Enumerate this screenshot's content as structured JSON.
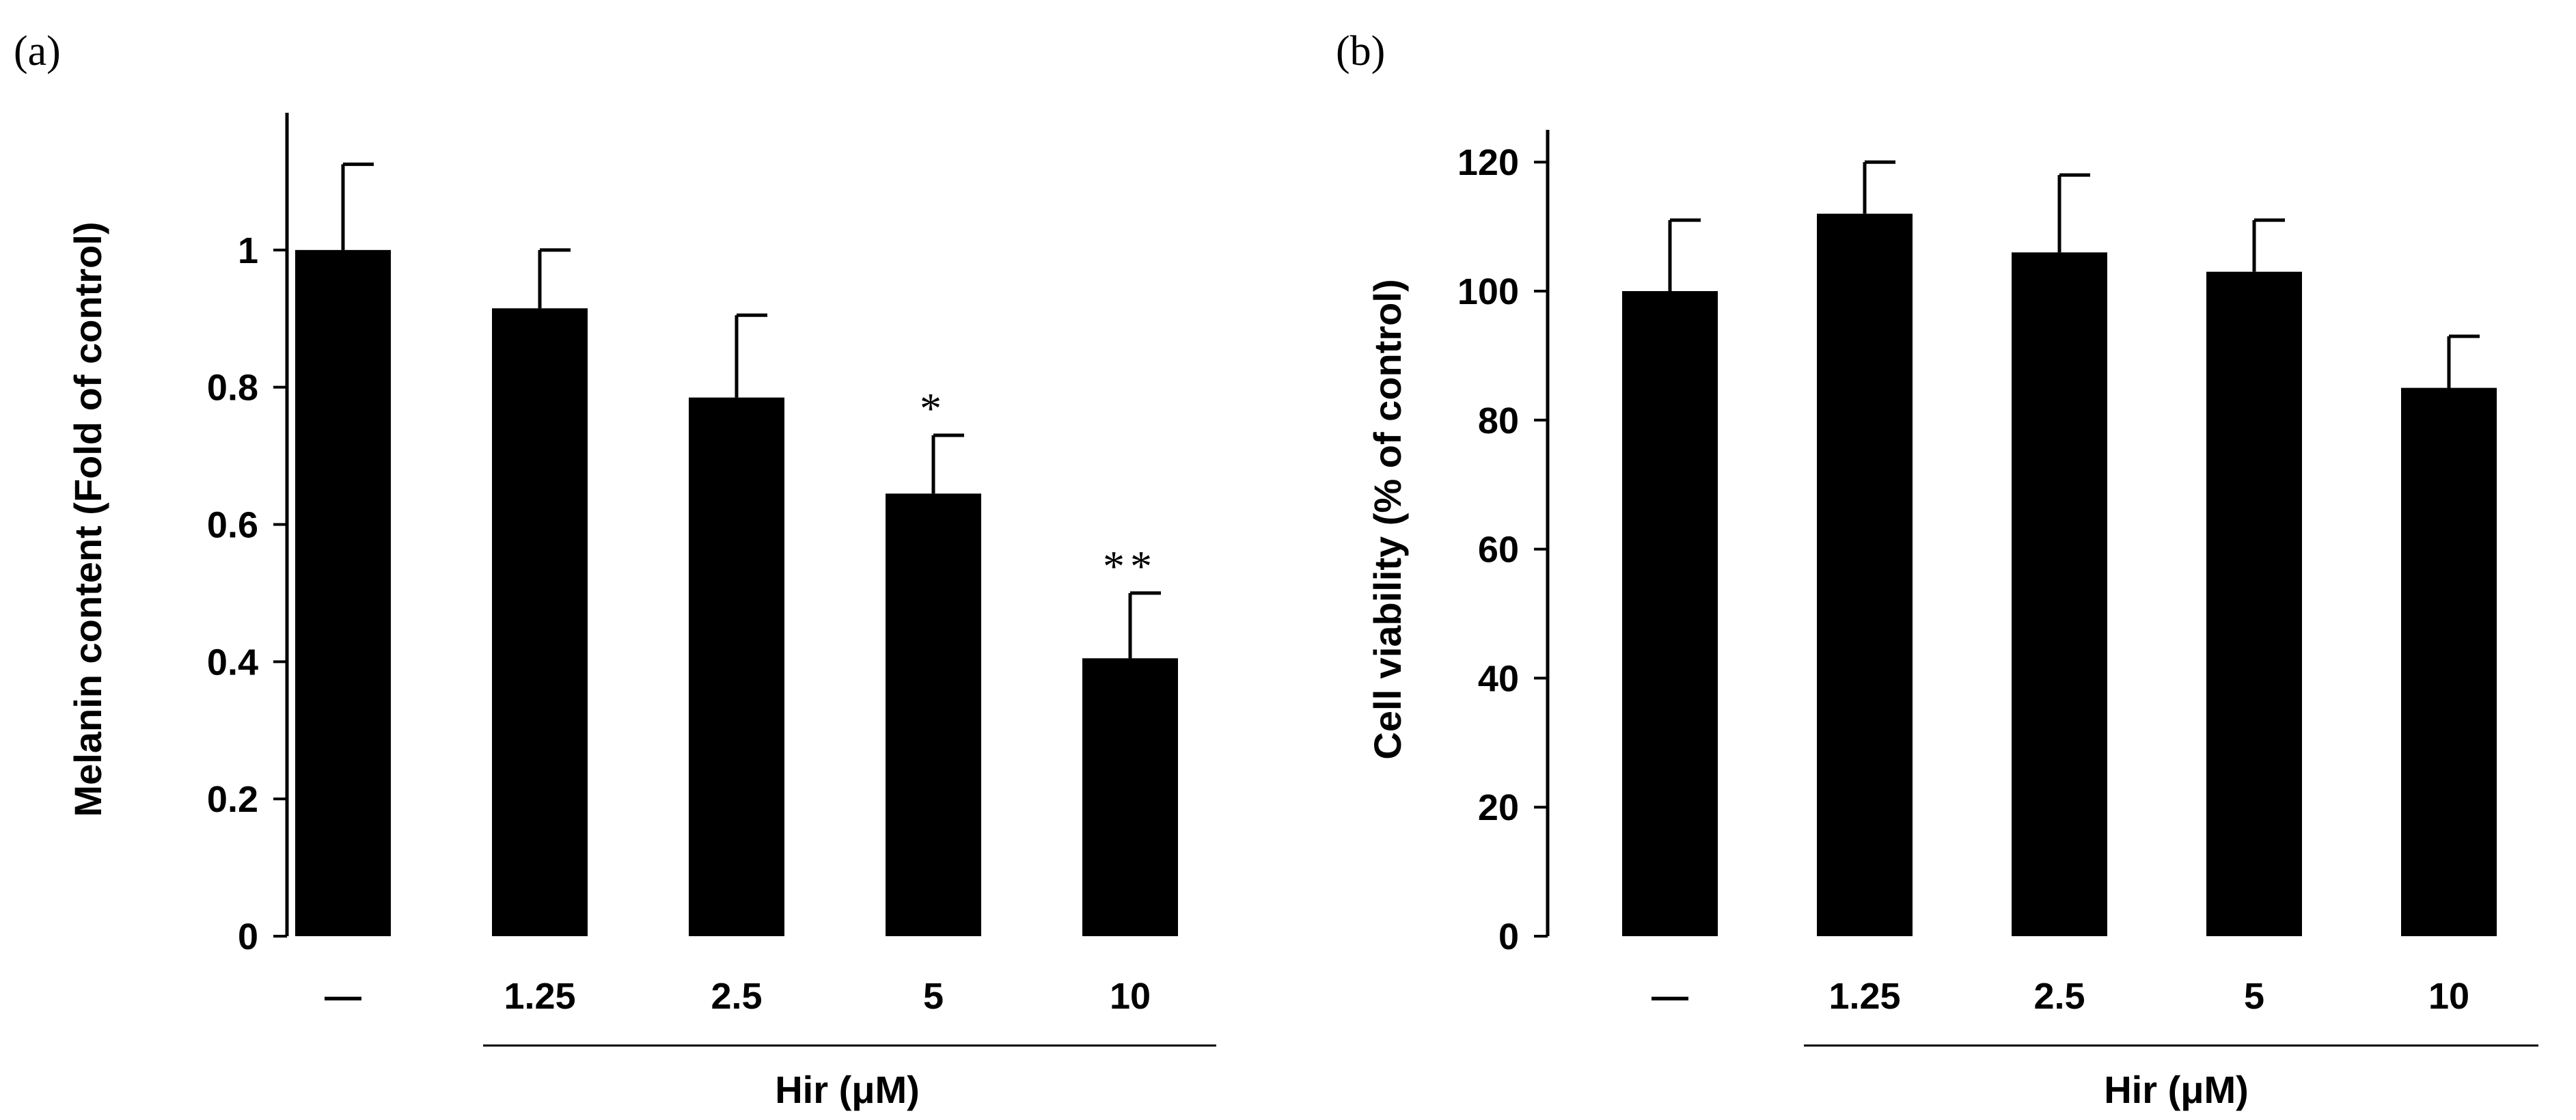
{
  "chart_data": [
    {
      "type": "bar",
      "panel_label": "(a)",
      "categories": [
        "—",
        "1.25",
        "2.5",
        "5",
        "10"
      ],
      "values": [
        1.0,
        0.915,
        0.785,
        0.645,
        0.405
      ],
      "errors": [
        0.125,
        0.085,
        0.12,
        0.085,
        0.095
      ],
      "significance": [
        "",
        "",
        "",
        "*",
        "**"
      ],
      "ylabel": "Melanin content (Fold of control)",
      "group_label": "Hir (μM)",
      "ylim": [
        0,
        1.2
      ],
      "yticks": [
        0,
        0.2,
        0.4,
        0.6,
        0.8,
        1
      ],
      "ytick_labels": [
        "0",
        "0.2",
        "0.4",
        "0.6",
        "0.8",
        "1"
      ],
      "bar_color": "#000000"
    },
    {
      "type": "bar",
      "panel_label": "(b)",
      "categories": [
        "—",
        "1.25",
        "2.5",
        "5",
        "10"
      ],
      "values": [
        100,
        112,
        106,
        103,
        85
      ],
      "errors": [
        11,
        8,
        12,
        8,
        8
      ],
      "significance": [
        "",
        "",
        "",
        "",
        ""
      ],
      "ylabel": "Cell viability (% of control)",
      "group_label": "Hir (μM)",
      "ylim": [
        0,
        125
      ],
      "yticks": [
        0,
        20,
        40,
        60,
        80,
        100,
        120
      ],
      "ytick_labels": [
        "0",
        "20",
        "40",
        "60",
        "80",
        "100",
        "120"
      ],
      "bar_color": "#000000"
    }
  ]
}
